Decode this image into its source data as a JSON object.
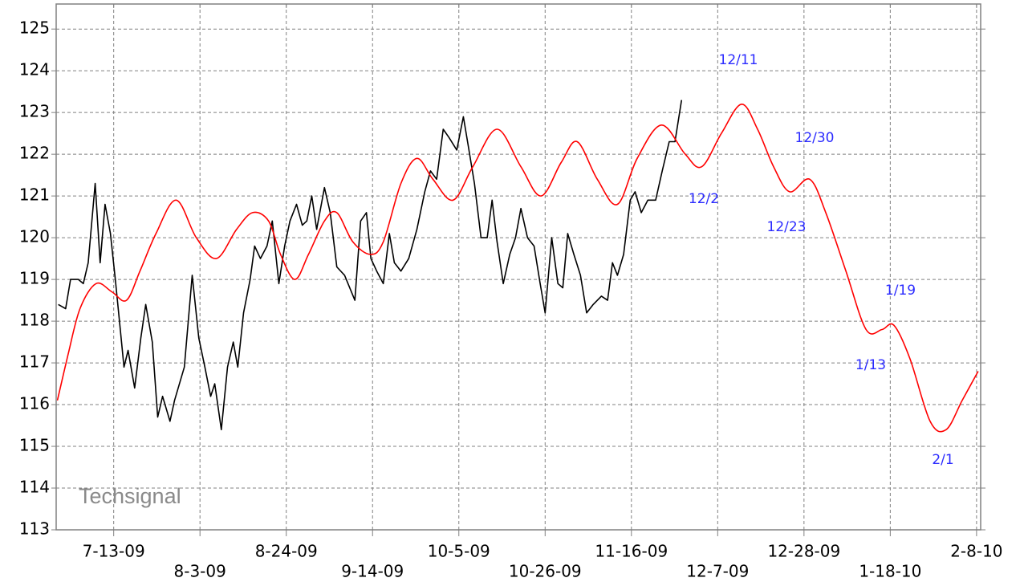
{
  "chart_data": {
    "type": "line",
    "watermark": "Techsignal",
    "xlim": [
      -14,
      211
    ],
    "ylim": [
      113,
      125.6
    ],
    "xticks": [
      {
        "value": 0,
        "label": "7-13-09"
      },
      {
        "value": 21,
        "label": "8-3-09"
      },
      {
        "value": 42,
        "label": "8-24-09"
      },
      {
        "value": 63,
        "label": "9-14-09"
      },
      {
        "value": 84,
        "label": "10-5-09"
      },
      {
        "value": 105,
        "label": "10-26-09"
      },
      {
        "value": 126,
        "label": "11-16-09"
      },
      {
        "value": 147,
        "label": "12-7-09"
      },
      {
        "value": 168,
        "label": "12-28-09"
      },
      {
        "value": 189,
        "label": "1-18-10"
      },
      {
        "value": 210,
        "label": "2-8-10"
      }
    ],
    "yticks": [
      113,
      114,
      115,
      116,
      117,
      118,
      119,
      120,
      121,
      122,
      123,
      124,
      125
    ],
    "grid": true,
    "annotations": [
      "12/11",
      "12/30",
      "12/2",
      "12/23",
      "1/19",
      "1/13",
      "2/1"
    ],
    "annotation_color": "#2b2bff",
    "series": [
      {
        "color": "#000000",
        "smooth": false,
        "x": [
          -13.5,
          -11.7,
          -10.5,
          -8.6,
          -7.4,
          -6.2,
          -4.5,
          -3.3,
          -2.1,
          -0.8,
          0.4,
          1.6,
          2.5,
          3.5,
          5.1,
          6.6,
          7.8,
          9.4,
          10.7,
          11.9,
          13.7,
          14.8,
          17.2,
          19.1,
          20.7,
          22.2,
          23.6,
          24.6,
          26.2,
          27.7,
          29.1,
          30.2,
          31.6,
          33.2,
          34.3,
          35.7,
          37.3,
          38.6,
          40.2,
          41.6,
          42.9,
          44.5,
          45.9,
          47.0,
          48.2,
          49.4,
          51.3,
          52.7,
          54.3,
          56.2,
          58.7,
          60.1,
          61.5,
          62.6,
          64.0,
          65.6,
          67.1,
          68.3,
          69.9,
          71.8,
          73.8,
          75.7,
          77.1,
          78.6,
          80.2,
          81.6,
          83.5,
          85.1,
          86.3,
          87.8,
          89.4,
          90.9,
          92.1,
          93.3,
          94.8,
          96.4,
          97.8,
          99.1,
          100.7,
          102.3,
          103.8,
          105.0,
          106.6,
          108.1,
          109.3,
          110.5,
          112.0,
          113.6,
          115.1,
          116.7,
          118.7,
          120.2,
          121.4,
          122.6,
          124.1,
          125.7,
          126.9,
          128.4,
          130.0,
          131.9,
          133.5,
          135.2,
          136.6,
          138.2
        ],
        "values": [
          118.4,
          118.3,
          119.0,
          119.0,
          118.9,
          119.4,
          121.3,
          119.4,
          120.8,
          120.1,
          119.0,
          117.8,
          116.9,
          117.3,
          116.4,
          117.6,
          118.4,
          117.5,
          115.7,
          116.2,
          115.6,
          116.1,
          116.9,
          119.1,
          117.6,
          116.9,
          116.2,
          116.5,
          115.4,
          116.9,
          117.5,
          116.9,
          118.2,
          119.0,
          119.8,
          119.5,
          119.8,
          120.4,
          118.9,
          119.8,
          120.4,
          120.8,
          120.3,
          120.4,
          121.0,
          120.2,
          121.2,
          120.6,
          119.3,
          119.1,
          118.5,
          120.4,
          120.6,
          119.5,
          119.2,
          118.9,
          120.1,
          119.4,
          119.2,
          119.5,
          120.2,
          121.1,
          121.6,
          121.4,
          122.6,
          122.4,
          122.1,
          122.9,
          122.2,
          121.3,
          120.0,
          120.0,
          120.9,
          119.9,
          118.9,
          119.6,
          120.0,
          120.7,
          120.0,
          119.8,
          118.9,
          118.2,
          120.0,
          118.9,
          118.8,
          120.1,
          119.6,
          119.1,
          118.2,
          118.4,
          118.6,
          118.5,
          119.4,
          119.1,
          119.6,
          120.9,
          121.1,
          120.6,
          120.9,
          120.9,
          121.6,
          122.3,
          122.3,
          123.3
        ]
      },
      {
        "color": "#ff0000",
        "smooth": true,
        "x": [
          -13.7,
          -11.1,
          -8.2,
          -4.3,
          -0.4,
          3.1,
          6.4,
          10.3,
          15.2,
          20.1,
          25.0,
          29.9,
          33.8,
          37.7,
          40.6,
          44.1,
          47.4,
          51.3,
          54.3,
          58.2,
          62.5,
          65.6,
          69.9,
          73.8,
          77.7,
          82.6,
          87.4,
          93.3,
          99.1,
          104.0,
          108.9,
          112.8,
          117.7,
          122.6,
          127.4,
          133.3,
          139.1,
          143.1,
          147.9,
          152.8,
          156.7,
          160.6,
          164.5,
          169.4,
          173.3,
          178.2,
          183.1,
          187.0,
          189.9,
          193.8,
          198.7,
          202.6,
          206.5,
          210.4
        ],
        "values": [
          116.1,
          117.2,
          118.3,
          118.9,
          118.7,
          118.5,
          119.2,
          120.1,
          120.9,
          120.0,
          119.5,
          120.2,
          120.6,
          120.4,
          119.6,
          119.0,
          119.6,
          120.4,
          120.6,
          119.9,
          119.6,
          119.9,
          121.3,
          121.9,
          121.4,
          120.9,
          121.7,
          122.6,
          121.7,
          121.0,
          121.8,
          122.3,
          121.4,
          120.8,
          121.9,
          122.7,
          122.0,
          121.7,
          122.5,
          123.2,
          122.6,
          121.7,
          121.1,
          121.4,
          120.6,
          119.2,
          117.8,
          117.8,
          117.9,
          117.1,
          115.6,
          115.4,
          116.1,
          116.8
        ]
      }
    ]
  }
}
